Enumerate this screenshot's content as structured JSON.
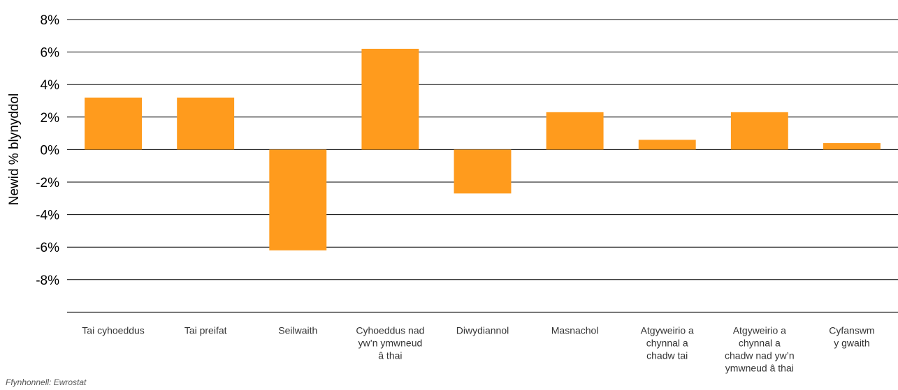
{
  "chart_data": {
    "type": "bar",
    "ylabel": "Newid % blynyddol",
    "ylim": [
      -10,
      8
    ],
    "yticks": [
      8,
      6,
      4,
      2,
      0,
      -2,
      -4,
      -6,
      -8
    ],
    "ytick_labels": [
      "8%",
      "6%",
      "4%",
      "2%",
      "0%",
      "-2%",
      "-4%",
      "-6%",
      "-8%"
    ],
    "grid": true,
    "categories": [
      [
        "Tai cyhoeddus"
      ],
      [
        "Tai preifat"
      ],
      [
        "Seilwaith"
      ],
      [
        "Cyhoeddus nad",
        "yw’n ymwneud",
        "â thai"
      ],
      [
        "Diwydiannol"
      ],
      [
        "Masnachol"
      ],
      [
        "Atgyweirio a",
        "chynnal a",
        "chadw tai"
      ],
      [
        "Atgyweirio a",
        "chynnal a",
        "chadw nad yw’n",
        "ymwneud â thai"
      ],
      [
        "Cyfanswm",
        "y gwaith"
      ]
    ],
    "values": [
      3.2,
      3.2,
      -6.2,
      6.2,
      -2.7,
      2.3,
      0.6,
      2.3,
      0.4
    ],
    "bar_color": "#FF9B1D",
    "source_note": "Ffynhonnell: Ewrostat"
  }
}
